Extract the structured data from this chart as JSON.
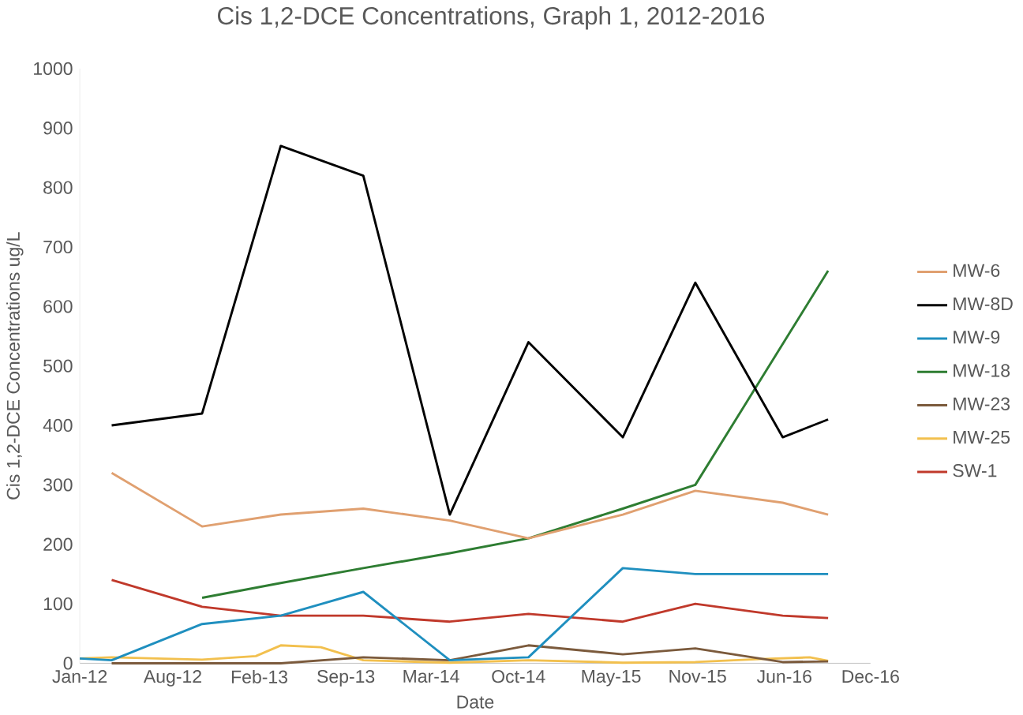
{
  "chart_data": {
    "type": "line",
    "title": "Cis 1,2-DCE Concentrations, Graph 1, 2012-2016",
    "xlabel": "Date",
    "ylabel": "Cis 1,2-DCE Concentrations ug/L",
    "xlim": [
      "2012-01-01",
      "2016-12-15"
    ],
    "xticks": [
      {
        "value": "2012-01-01",
        "label": "Jan-12"
      },
      {
        "value": "2012-08-01",
        "label": "Aug-12"
      },
      {
        "value": "2013-02-15",
        "label": "Feb-13"
      },
      {
        "value": "2013-09-01",
        "label": "Sep-13"
      },
      {
        "value": "2014-03-15",
        "label": "Mar-14"
      },
      {
        "value": "2014-10-01",
        "label": "Oct-14"
      },
      {
        "value": "2015-05-01",
        "label": "May-15"
      },
      {
        "value": "2015-11-15",
        "label": "Nov-15"
      },
      {
        "value": "2016-06-01",
        "label": "Jun-16"
      },
      {
        "value": "2016-12-15",
        "label": "Dec-16"
      }
    ],
    "ylim": [
      0,
      1000
    ],
    "yticks": [
      0,
      100,
      200,
      300,
      400,
      500,
      600,
      700,
      800,
      900,
      1000
    ],
    "legend": "right",
    "series": [
      {
        "name": "MW-6",
        "color": "#e0a070",
        "x": [
          "2012-03-14",
          "2012-10-07",
          "2013-04-05",
          "2013-10-11",
          "2014-04-27",
          "2014-10-24",
          "2015-05-28",
          "2015-11-10",
          "2016-05-28",
          "2016-09-09"
        ],
        "values": [
          320,
          230,
          250,
          260,
          240,
          210,
          250,
          290,
          270,
          250
        ]
      },
      {
        "name": "MW-8D",
        "color": "#000000",
        "x": [
          "2012-03-14",
          "2012-10-07",
          "2013-04-05",
          "2013-10-11",
          "2014-04-27",
          "2014-10-24",
          "2015-05-28",
          "2015-11-10",
          "2016-05-28",
          "2016-09-09"
        ],
        "values": [
          400,
          420,
          870,
          820,
          250,
          540,
          380,
          640,
          380,
          410
        ]
      },
      {
        "name": "MW-9",
        "color": "#1f8fbf",
        "x": [
          "2012-01-01",
          "2012-03-14",
          "2012-10-07",
          "2013-04-05",
          "2013-10-11",
          "2014-04-27",
          "2014-10-24",
          "2015-05-28",
          "2015-11-10",
          "2016-05-28",
          "2016-09-09"
        ],
        "values": [
          8,
          5,
          66,
          80,
          120,
          5,
          10,
          160,
          150,
          150,
          150
        ]
      },
      {
        "name": "MW-18",
        "color": "#2e7d32",
        "x": [
          "2012-10-07",
          "2013-04-05",
          "2013-10-11",
          "2014-04-27",
          "2014-10-24",
          "2015-05-28",
          "2015-11-10",
          "2016-09-09"
        ],
        "values": [
          110,
          135,
          160,
          185,
          210,
          260,
          300,
          660
        ]
      },
      {
        "name": "MW-23",
        "color": "#7b5a3c",
        "x": [
          "2012-03-14",
          "2012-10-07",
          "2013-04-05",
          "2013-10-11",
          "2014-04-27",
          "2014-10-24",
          "2015-05-28",
          "2015-11-10",
          "2016-05-28",
          "2016-09-09"
        ],
        "values": [
          0,
          0,
          0,
          10,
          5,
          30,
          15,
          25,
          2,
          3
        ]
      },
      {
        "name": "MW-25",
        "color": "#f2c04e",
        "x": [
          "2012-01-01",
          "2012-03-14",
          "2012-10-07",
          "2013-02-07",
          "2013-04-05",
          "2013-07-06",
          "2013-10-11",
          "2014-04-27",
          "2014-10-24",
          "2015-05-28",
          "2015-11-10",
          "2016-04-06",
          "2016-07-29",
          "2016-09-09"
        ],
        "values": [
          8,
          10,
          6,
          12,
          30,
          27,
          5,
          1,
          5,
          1,
          2,
          7,
          10,
          4
        ]
      },
      {
        "name": "SW-1",
        "color": "#c0392b",
        "x": [
          "2012-03-14",
          "2012-10-07",
          "2013-04-05",
          "2013-10-11",
          "2014-04-27",
          "2014-10-24",
          "2015-05-28",
          "2015-11-10",
          "2016-05-28",
          "2016-09-09"
        ],
        "values": [
          140,
          95,
          80,
          80,
          70,
          83,
          70,
          100,
          80,
          76
        ]
      }
    ]
  }
}
